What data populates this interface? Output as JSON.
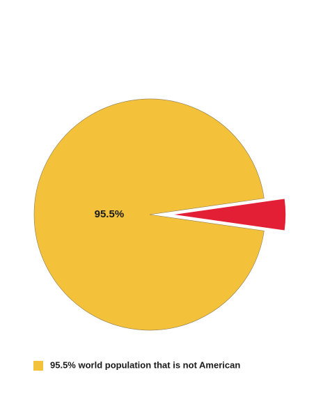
{
  "chart_data": {
    "type": "pie",
    "categories": [
      "95.5% world population that is not American",
      null
    ],
    "values": [
      95.5,
      4.5
    ],
    "value_labels": [
      "95.5%",
      null
    ],
    "colors": [
      "#f4c13a",
      "#e21f35"
    ],
    "legend": "bottom-left"
  }
}
